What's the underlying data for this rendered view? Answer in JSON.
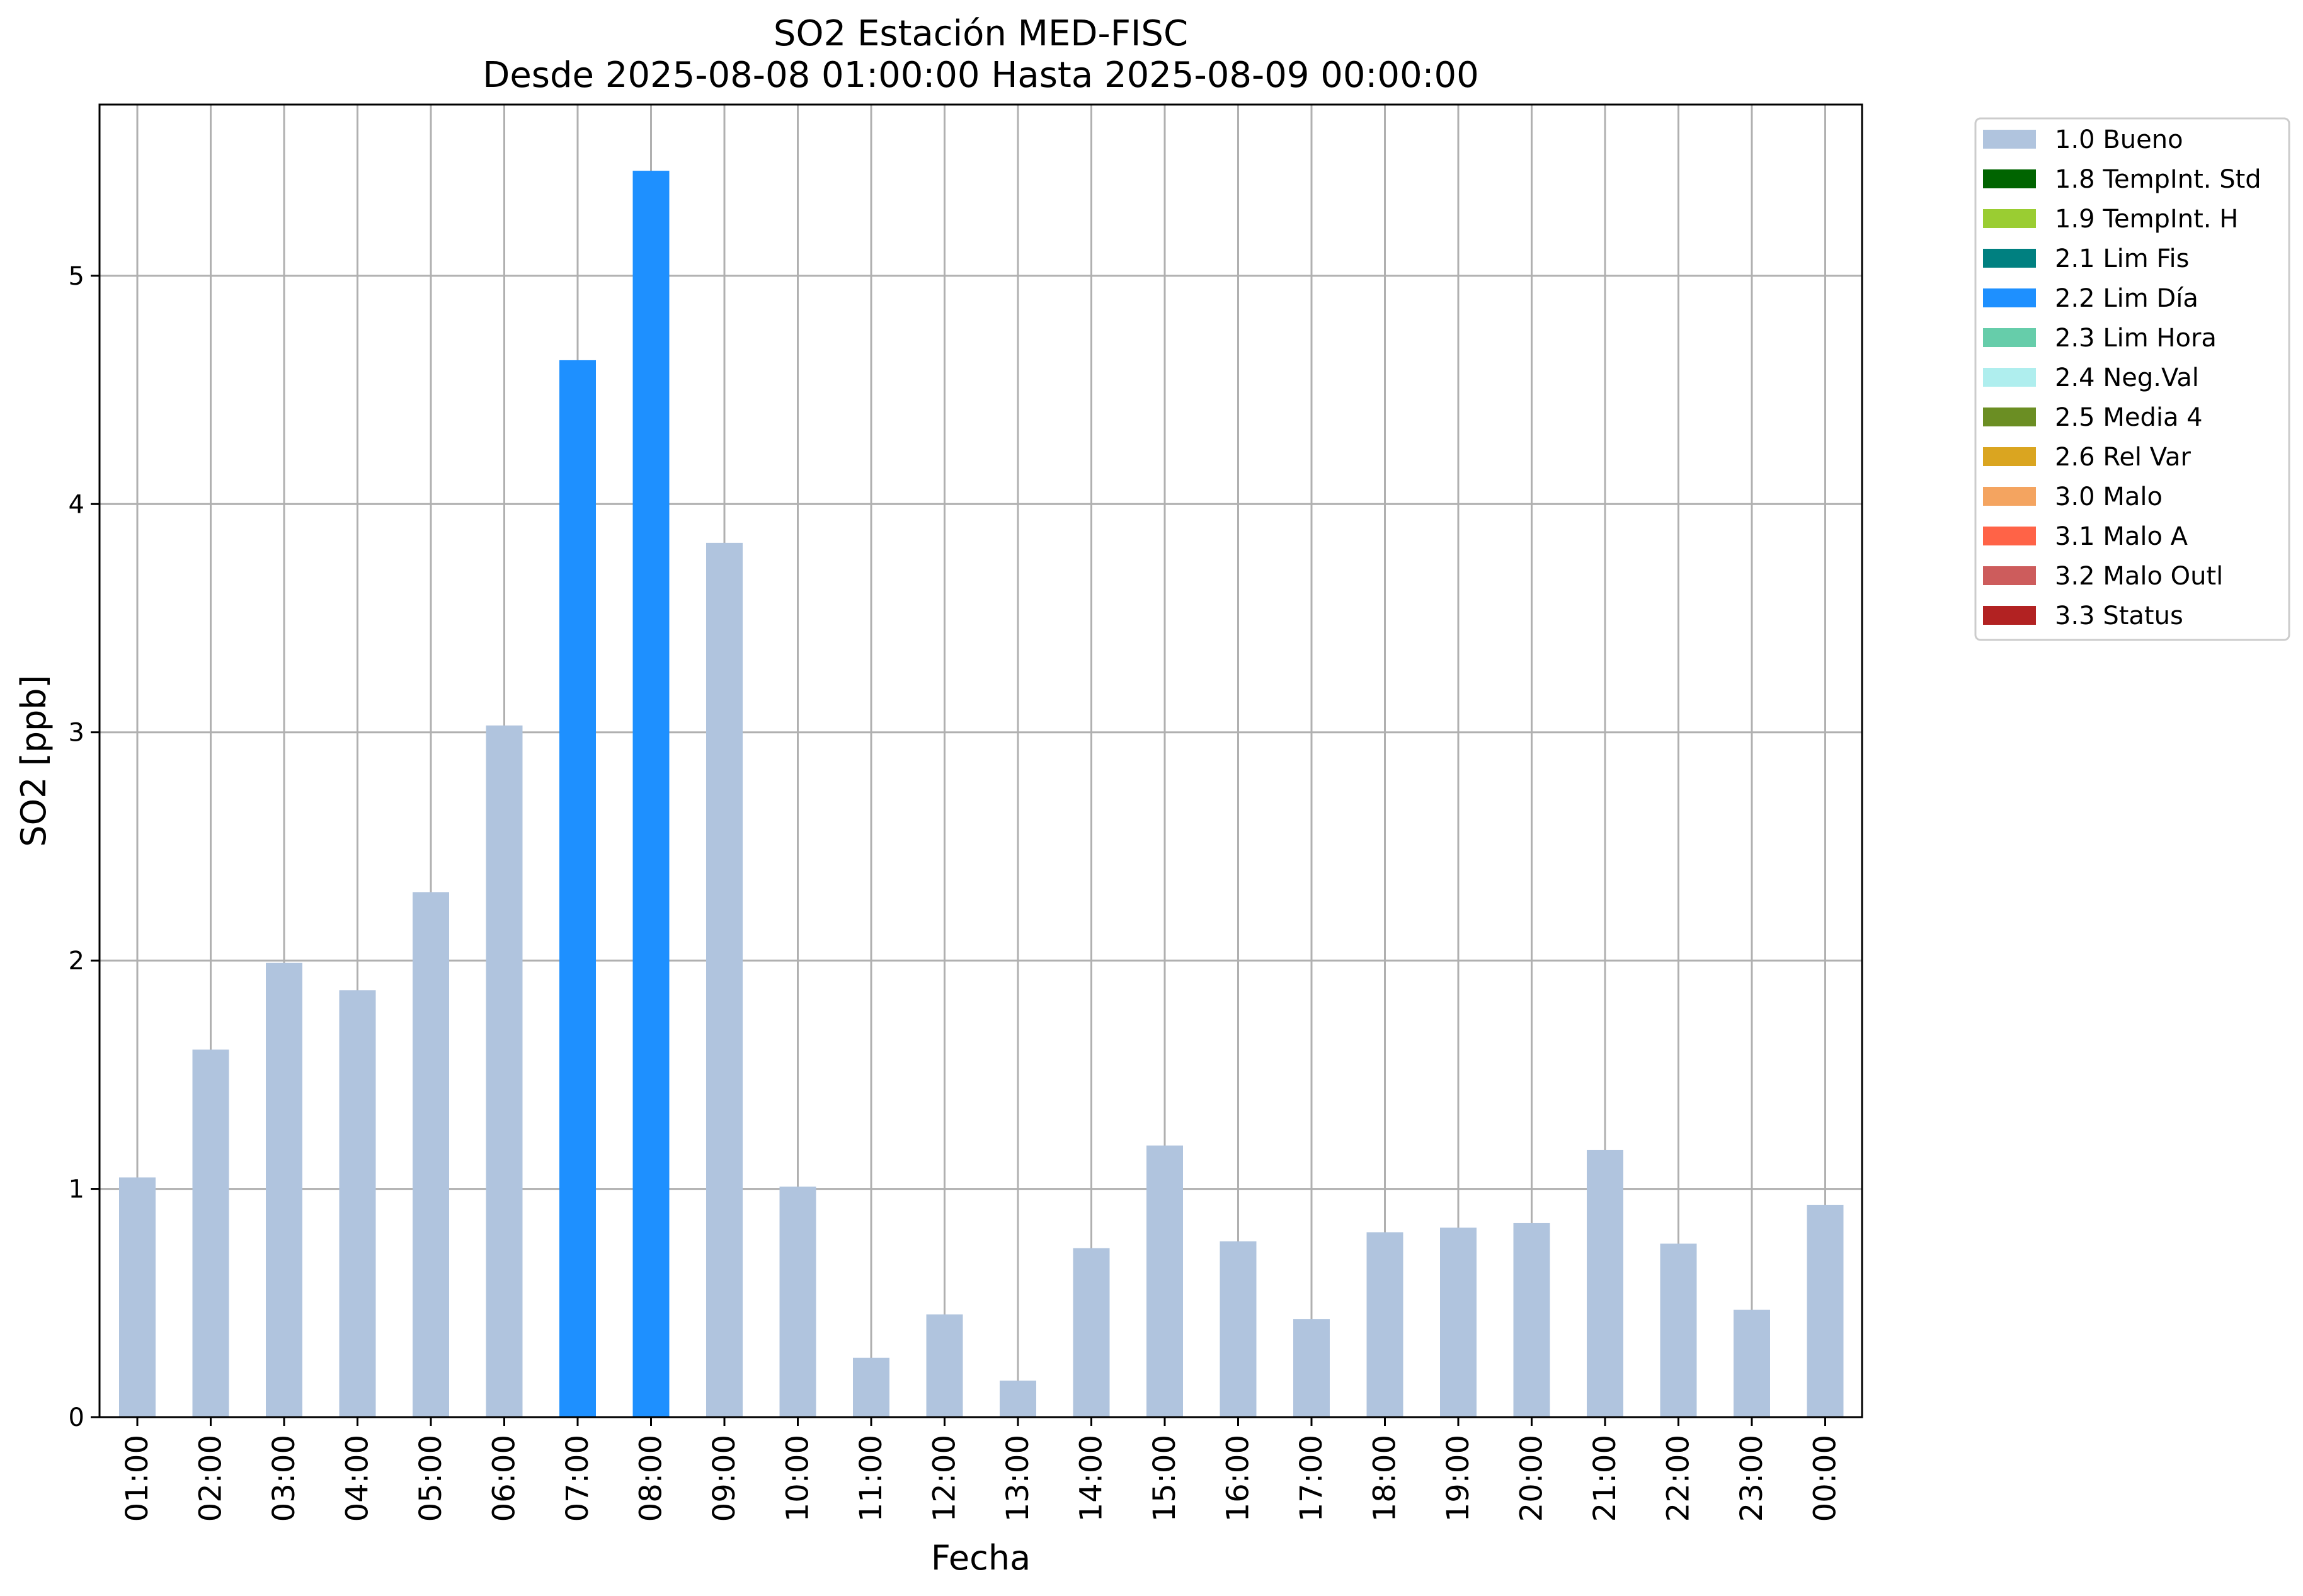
{
  "chart_data": {
    "type": "bar",
    "title": "SO2 Estación MED-FISC",
    "subtitle": "Desde 2025-08-08 01:00:00 Hasta 2025-08-09 00:00:00",
    "xlabel": "Fecha",
    "ylabel": "SO2 [ppb]",
    "ylim": [
      0,
      5.75
    ],
    "yticks": [
      0,
      1,
      2,
      3,
      4,
      5
    ],
    "grid": true,
    "legend_position": "outside-top-right",
    "categories": [
      "01:00",
      "02:00",
      "03:00",
      "04:00",
      "05:00",
      "06:00",
      "07:00",
      "08:00",
      "09:00",
      "10:00",
      "11:00",
      "12:00",
      "13:00",
      "14:00",
      "15:00",
      "16:00",
      "17:00",
      "18:00",
      "19:00",
      "20:00",
      "21:00",
      "22:00",
      "23:00",
      "00:00"
    ],
    "values": [
      1.05,
      1.61,
      1.99,
      1.87,
      2.3,
      3.03,
      4.63,
      5.46,
      3.83,
      1.01,
      0.26,
      0.45,
      0.16,
      0.74,
      1.19,
      0.77,
      0.43,
      0.81,
      0.83,
      0.85,
      1.17,
      0.76,
      0.47,
      0.93
    ],
    "bar_flags": [
      "1.0 Bueno",
      "1.0 Bueno",
      "1.0 Bueno",
      "1.0 Bueno",
      "1.0 Bueno",
      "1.0 Bueno",
      "2.2 Lim Día",
      "2.2 Lim Día",
      "1.0 Bueno",
      "1.0 Bueno",
      "1.0 Bueno",
      "1.0 Bueno",
      "1.0 Bueno",
      "1.0 Bueno",
      "1.0 Bueno",
      "1.0 Bueno",
      "1.0 Bueno",
      "1.0 Bueno",
      "1.0 Bueno",
      "1.0 Bueno",
      "1.0 Bueno",
      "1.0 Bueno",
      "1.0 Bueno",
      "1.0 Bueno"
    ],
    "legend": [
      {
        "label": "1.0 Bueno",
        "color": "#b0c4de"
      },
      {
        "label": "1.8 TempInt. Std",
        "color": "#006400"
      },
      {
        "label": "1.9 TempInt. H",
        "color": "#9acd32"
      },
      {
        "label": "2.1 Lim Fis",
        "color": "#008080"
      },
      {
        "label": "2.2 Lim Día",
        "color": "#1e90ff"
      },
      {
        "label": "2.3 Lim Hora",
        "color": "#66cdaa"
      },
      {
        "label": "2.4 Neg.Val",
        "color": "#afeeee"
      },
      {
        "label": "2.5 Media 4",
        "color": "#6b8e23"
      },
      {
        "label": "2.6 Rel Var",
        "color": "#daa520"
      },
      {
        "label": "3.0 Malo",
        "color": "#f4a460"
      },
      {
        "label": "3.1 Malo A",
        "color": "#ff6347"
      },
      {
        "label": "3.2 Malo Outl",
        "color": "#cd5c5c"
      },
      {
        "label": "3.3 Status",
        "color": "#b22222"
      }
    ]
  }
}
